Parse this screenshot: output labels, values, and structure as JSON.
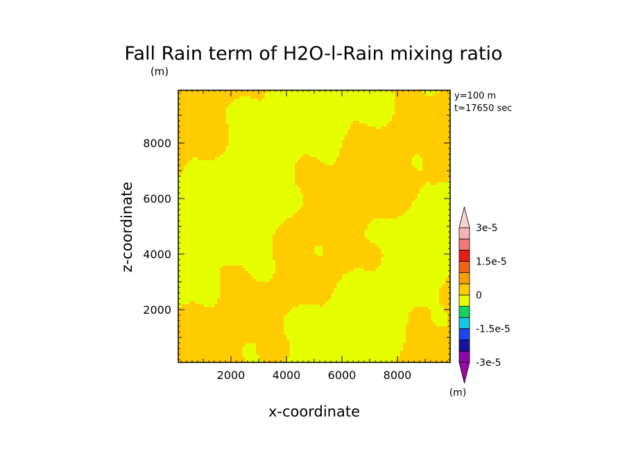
{
  "chart_data": {
    "type": "heatmap",
    "title": "Fall Rain term of H2O-l-Rain mixing ratio",
    "title_unit": "(m)",
    "xlabel": "x-coordinate",
    "ylabel": "z-coordinate",
    "xlim": [
      100,
      9900
    ],
    "ylim": [
      100,
      9900
    ],
    "xticks": [
      2000,
      4000,
      6000,
      8000
    ],
    "yticks": [
      2000,
      4000,
      6000,
      8000
    ],
    "annotations": [
      "y=100 m",
      "t=17650 sec"
    ],
    "colorbar": {
      "unit": "(m)",
      "tick_labels": [
        "3e-5",
        "1.5e-5",
        "0",
        "-1.5e-5",
        "-3e-5"
      ],
      "tick_values": [
        3e-05,
        1.5e-05,
        0,
        -1.5e-05,
        -3e-05
      ],
      "levels_bottom_to_top": [
        {
          "color": "#8a0aa8",
          "min": -3e-05,
          "max": -2.5e-05
        },
        {
          "color": "#1414a0",
          "min": -2.5e-05,
          "max": -2e-05
        },
        {
          "color": "#1e46f0",
          "min": -2e-05,
          "max": -1.5e-05
        },
        {
          "color": "#14c8e6",
          "min": -1.5e-05,
          "max": -1e-05
        },
        {
          "color": "#14d264",
          "min": -1e-05,
          "max": -5e-06
        },
        {
          "color": "#e6ff00",
          "min": -5e-06,
          "max": 0
        },
        {
          "color": "#ffcc00",
          "min": 0,
          "max": 5e-06
        },
        {
          "color": "#f5a000",
          "min": 5e-06,
          "max": 1e-05
        },
        {
          "color": "#f06414",
          "min": 1e-05,
          "max": 1.5e-05
        },
        {
          "color": "#e61e14",
          "min": 1.5e-05,
          "max": 2e-05
        },
        {
          "color": "#f07878",
          "min": 2e-05,
          "max": 2.5e-05
        },
        {
          "color": "#f5b4b4",
          "min": 2.5e-05,
          "max": 3e-05
        }
      ],
      "over_color": "#fad2d2",
      "under_color": "#9a0aa8"
    },
    "field_colors": {
      "low": "#e6ff00",
      "high": "#ffcc00"
    },
    "field_description_values": "Field values range between -5e-6 and 5e-6 (yellow and orange bands) over the whole domain."
  }
}
